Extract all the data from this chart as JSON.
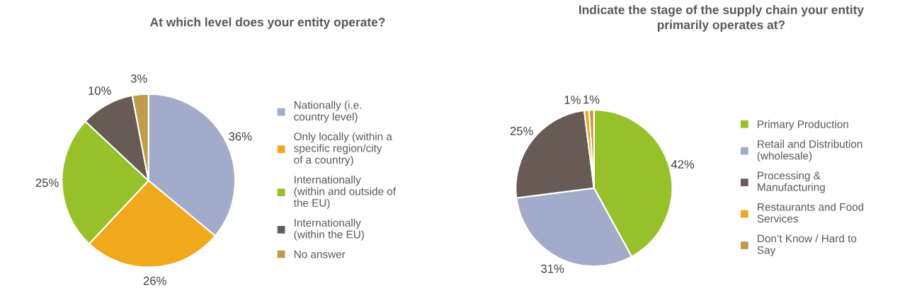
{
  "chart_data": [
    {
      "type": "pie",
      "title": "At which level does your entity operate?",
      "categories": [
        "Nationally (i.e. country level)",
        "Only locally (within a specific region/city of a country)",
        "Internationally (within and outside of the EU)",
        "Internationally (within the EU)",
        "No answer"
      ],
      "values": [
        36,
        26,
        25,
        10,
        3
      ],
      "value_labels": [
        "36%",
        "26%",
        "25%",
        "10%",
        "3%"
      ],
      "colors": [
        "#a2abc9",
        "#f0a81c",
        "#97c12b",
        "#685a55",
        "#bf9b4a"
      ],
      "legend": "right"
    },
    {
      "type": "pie",
      "title": "Indicate the stage of the supply chain your entity primarily operates at?",
      "categories": [
        "Primary Production",
        "Retail and Distribution (wholesale)",
        "Processing & Manufacturing",
        "Restaurants and Food Services",
        "Don’t Know / Hard to Say"
      ],
      "values": [
        42,
        31,
        25,
        1,
        1
      ],
      "value_labels": [
        "42%",
        "31%",
        "25%",
        "1%",
        "1%"
      ],
      "colors": [
        "#97c12b",
        "#a2abc9",
        "#685a55",
        "#f0a81c",
        "#bf9b4a"
      ],
      "legend": "right"
    }
  ]
}
